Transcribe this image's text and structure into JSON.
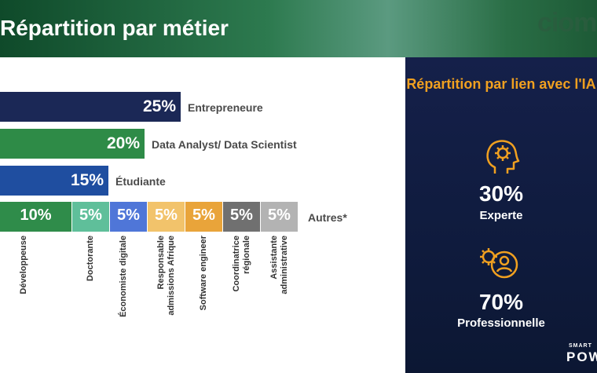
{
  "page": {
    "title": "Répartition par métier",
    "logo_text": "cioma"
  },
  "chart_data": {
    "type": "bar",
    "orientation": "horizontal",
    "bars": [
      {
        "label": "Entrepreneure",
        "value": 25,
        "value_text": "25%",
        "color": "#1b2856"
      },
      {
        "label": "Data Analyst/ Data Scientist",
        "value": 20,
        "value_text": "20%",
        "color": "#2e8b47"
      },
      {
        "label": "Étudiante",
        "value": 15,
        "value_text": "15%",
        "color": "#1f4ea0"
      }
    ],
    "stacked": {
      "label": "Autres*",
      "segments": [
        {
          "label": "Développeuse",
          "value": 10,
          "value_text": "10%",
          "color": "#2f8c4a"
        },
        {
          "label": "Doctorante",
          "value": 5,
          "value_text": "5%",
          "color": "#5fbf9a"
        },
        {
          "label": "Économiste digitale",
          "value": 5,
          "value_text": "5%",
          "color": "#4f76d8"
        },
        {
          "label": "Responsable admissions Afrique",
          "value": 5,
          "value_text": "5%",
          "color": "#f2c36b"
        },
        {
          "label": "Software engineer",
          "value": 5,
          "value_text": "5%",
          "color": "#e9a43a"
        },
        {
          "label": "Coordinatrice régionale",
          "value": 5,
          "value_text": "5%",
          "color": "#707070"
        },
        {
          "label": "Assistante administrative",
          "value": 5,
          "value_text": "5%",
          "color": "#b3b3b3"
        }
      ]
    }
  },
  "side_panel": {
    "title": "Répartition par lien avec l'IA",
    "items": [
      {
        "value": 30,
        "value_text": "30%",
        "label": "Experte",
        "icon": "head-gear-icon"
      },
      {
        "value": 70,
        "value_text": "70%",
        "label": "Professionnelle",
        "icon": "person-gear-icon"
      }
    ],
    "accent_color": "#f0a020"
  },
  "footer": {
    "brand_small": "SMART",
    "brand_big": "POW"
  }
}
